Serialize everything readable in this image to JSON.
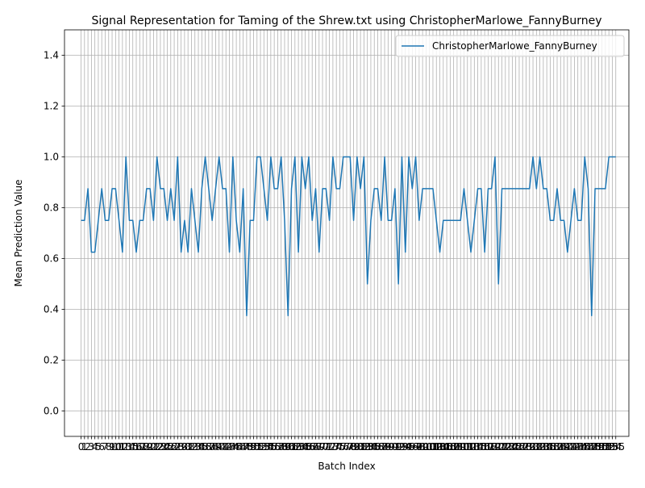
{
  "chart_data": {
    "type": "line",
    "title": "Signal Representation for Taming of the Shrew.txt using ChristopherMarlowe_FannyBurney",
    "xlabel": "Batch Index",
    "ylabel": "Mean Prediction Value",
    "xlim": [
      -4.8,
      158.8
    ],
    "ylim": [
      -0.1,
      1.5
    ],
    "yticks": [
      0.0,
      0.2,
      0.4,
      0.6,
      0.8,
      1.0,
      1.2,
      1.4
    ],
    "ytick_labels": [
      "0.0",
      "0.2",
      "0.4",
      "0.6",
      "0.8",
      "1.0",
      "1.2",
      "1.4"
    ],
    "grid": true,
    "legend_position": "top-right",
    "series": [
      {
        "name": "ChristopherMarlowe_FannyBurney",
        "color": "#1f77b4",
        "values": [
          0.75,
          0.75,
          0.875,
          0.625,
          0.625,
          0.75,
          0.875,
          0.75,
          0.75,
          0.875,
          0.875,
          0.75,
          0.625,
          1.0,
          0.75,
          0.75,
          0.625,
          0.75,
          0.75,
          0.875,
          0.875,
          0.75,
          1.0,
          0.875,
          0.875,
          0.75,
          0.875,
          0.75,
          1.0,
          0.625,
          0.75,
          0.625,
          0.875,
          0.75,
          0.625,
          0.875,
          1.0,
          0.875,
          0.75,
          0.875,
          1.0,
          0.875,
          0.875,
          0.625,
          1.0,
          0.75,
          0.625,
          0.875,
          0.375,
          0.75,
          0.75,
          1.0,
          1.0,
          0.875,
          0.75,
          1.0,
          0.875,
          0.875,
          1.0,
          0.75,
          0.375,
          0.875,
          1.0,
          0.625,
          1.0,
          0.875,
          1.0,
          0.75,
          0.875,
          0.625,
          0.875,
          0.875,
          0.75,
          1.0,
          0.875,
          0.875,
          1.0,
          1.0,
          1.0,
          0.75,
          1.0,
          0.875,
          1.0,
          0.5,
          0.75,
          0.875,
          0.875,
          0.75,
          1.0,
          0.75,
          0.75,
          0.875,
          0.5,
          1.0,
          0.625,
          1.0,
          0.875,
          1.0,
          0.75,
          0.875,
          0.875,
          0.875,
          0.875,
          0.75,
          0.625,
          0.75,
          0.75,
          0.75,
          0.75,
          0.75,
          0.75,
          0.875,
          0.75,
          0.625,
          0.75,
          0.875,
          0.875,
          0.625,
          0.875,
          0.875,
          1.0,
          0.5,
          0.875,
          0.875,
          0.875,
          0.875,
          0.875,
          0.875,
          0.875,
          0.875,
          0.875,
          1.0,
          0.875,
          1.0,
          0.875,
          0.875,
          0.75,
          0.75,
          0.875,
          0.75,
          0.75,
          0.625,
          0.75,
          0.875,
          0.75,
          0.75,
          1.0,
          0.875,
          0.375,
          0.875,
          0.875,
          0.875,
          0.875,
          1.0,
          1.0,
          1.0
        ]
      }
    ]
  }
}
